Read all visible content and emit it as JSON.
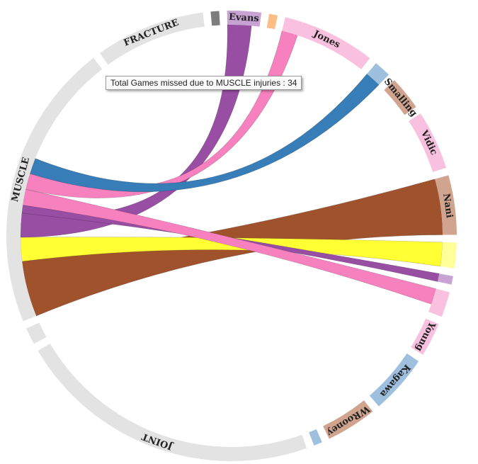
{
  "chart_data": {
    "type": "chord",
    "groups": [
      {
        "name": "Evans",
        "color": "#c7a2d3",
        "value": 4
      },
      {
        "name": "",
        "color": "#fdbe85",
        "value": 1
      },
      {
        "name": "Jones",
        "color": "#f9c0df",
        "value": 11
      },
      {
        "name": "",
        "color": "#9ebfde",
        "value": 2
      },
      {
        "name": "Smalling",
        "color": "#d1a48f",
        "value": 4
      },
      {
        "name": "Vidic",
        "color": "#f9c0df",
        "value": 7
      },
      {
        "name": "Nani",
        "color": "#d1a48f",
        "value": 7
      },
      {
        "name": "",
        "color": "#ffff99",
        "value": 3
      },
      {
        "name": "",
        "color": "#c7a2d3",
        "value": 1
      },
      {
        "name": "",
        "color": "#f9c0df",
        "value": 3
      },
      {
        "name": "Young",
        "color": "#f9c0df",
        "value": 4
      },
      {
        "name": "Kagawa",
        "color": "#9ebfde",
        "value": 7
      },
      {
        "name": "WRooney",
        "color": "#d1a48f",
        "value": 6
      },
      {
        "name": "",
        "color": "#9ebfde",
        "value": 1
      },
      {
        "name": "JOINT",
        "color": "#e3e3e3",
        "value": 36
      },
      {
        "name": "",
        "color": "#e3e3e3",
        "value": 2
      },
      {
        "name": "MUSCLE",
        "color": "#e3e3e3",
        "value": 34
      },
      {
        "name": "FRACTURE",
        "color": "#e3e3e3",
        "value": 13
      },
      {
        "name": "",
        "color": "#7d7d7d",
        "value": 1
      }
    ],
    "ribbons": [
      {
        "source": "MUSCLE",
        "target": "Nani",
        "value": 7,
        "color": "#a0522d"
      },
      {
        "source": "MUSCLE",
        "target": "",
        "value": 3,
        "color": "#ffff33",
        "target_index": 7
      },
      {
        "source": "MUSCLE",
        "target": "Evans",
        "value": 3,
        "color": "#984ea3"
      },
      {
        "source": "MUSCLE",
        "target": "",
        "value": 1,
        "color": "#984ea3",
        "target_index": 8
      },
      {
        "source": "MUSCLE",
        "target": "",
        "value": 2,
        "color": "#f781bf",
        "target_index": 9
      },
      {
        "source": "MUSCLE",
        "target": "Jones",
        "value": 2,
        "color": "#f781bf"
      },
      {
        "source": "MUSCLE",
        "target": "",
        "value": 2,
        "color": "#377eb8",
        "target_index": 3
      }
    ]
  },
  "tooltip": {
    "text": "Total Games missed due to MUSCLE injuries : 34"
  }
}
